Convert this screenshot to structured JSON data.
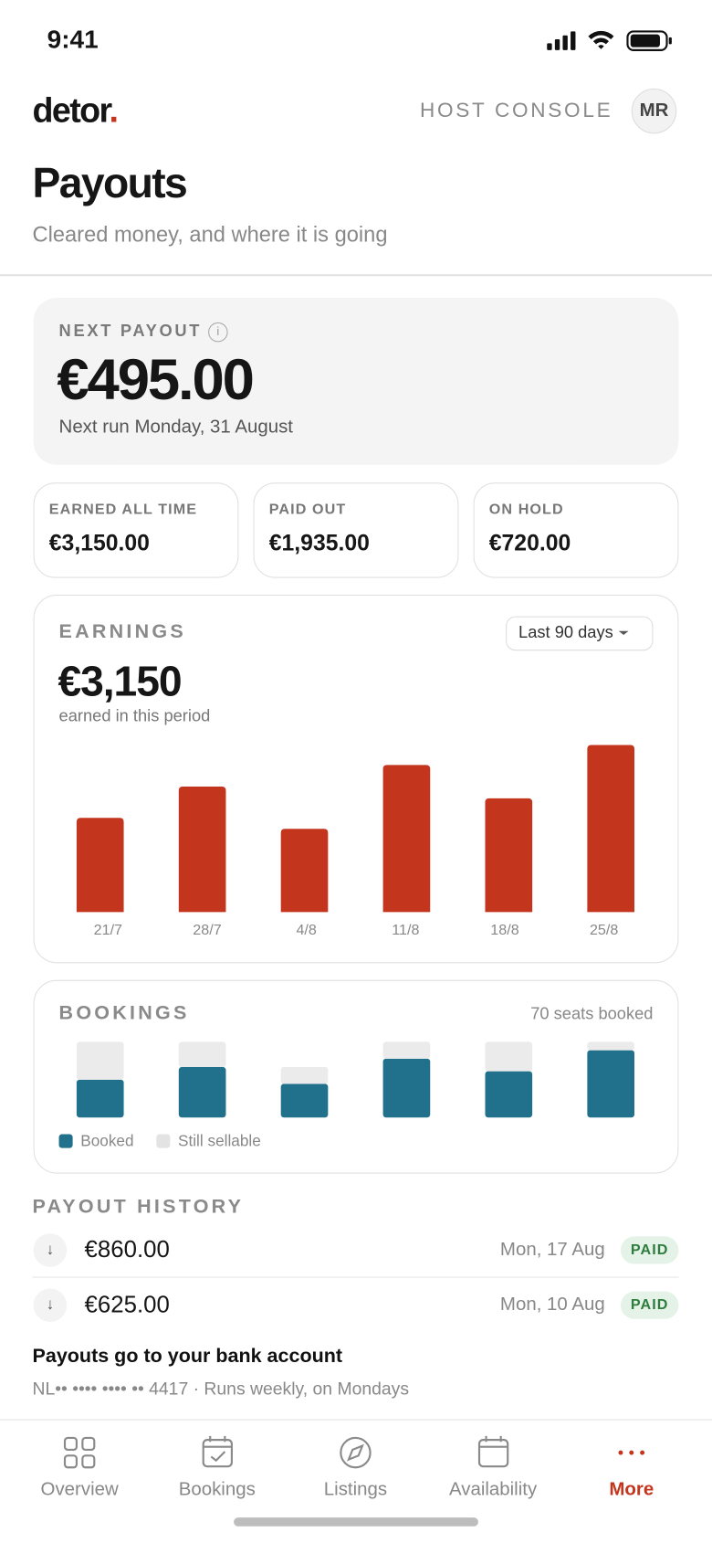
{
  "status_bar": {
    "time": "9:41"
  },
  "header": {
    "brand": "detor",
    "brand_dot": ".",
    "console": "HOST CONSOLE",
    "avatar": "MR"
  },
  "page": {
    "title": "Payouts",
    "subtitle": "Cleared money, and where it is going"
  },
  "next_payout": {
    "label": "NEXT PAYOUT",
    "info": "i",
    "amount": "€495.00",
    "note": "Next run Monday, 31 August"
  },
  "stats": [
    {
      "label": "EARNED ALL TIME",
      "value": "€3,150.00"
    },
    {
      "label": "PAID OUT",
      "value": "€1,935.00"
    },
    {
      "label": "ON HOLD",
      "value": "€720.00"
    }
  ],
  "earnings": {
    "period": "Last 90 days",
    "total": "€3,150",
    "total_note": "earned in this period"
  },
  "chart_data": [
    {
      "type": "bar",
      "title": "EARNINGS",
      "categories": [
        "21/7",
        "28/7",
        "4/8",
        "11/8",
        "18/8",
        "25/8"
      ],
      "values": [
        406,
        541,
        359,
        634,
        490,
        720
      ],
      "color": "#c4351d"
    },
    {
      "type": "stacked_bar",
      "title": "BOOKINGS",
      "subtitle": "70 seats booked",
      "series": [
        {
          "name": "Booked",
          "color": "#21708c",
          "values": [
            9,
            12,
            8,
            14,
            11,
            16
          ]
        },
        {
          "name": "Still sellable",
          "color": "#ebebeb",
          "values": [
            9,
            6,
            4,
            4,
            7,
            2
          ]
        }
      ]
    }
  ],
  "payout_history": {
    "title": "PAYOUT HISTORY",
    "rows": [
      {
        "amount": "€860.00",
        "date": "Mon, 17 Aug",
        "status": "PAID"
      },
      {
        "amount": "€625.00",
        "date": "Mon, 10 Aug",
        "status": "PAID"
      }
    ]
  },
  "bank": {
    "title": "Payouts go to your bank account",
    "detail": "NL•• •••• •••• •• 4417 · Runs weekly, on Mondays"
  },
  "nav": {
    "items": [
      "Overview",
      "Bookings",
      "Listings",
      "Availability",
      "More"
    ],
    "active": 4
  }
}
